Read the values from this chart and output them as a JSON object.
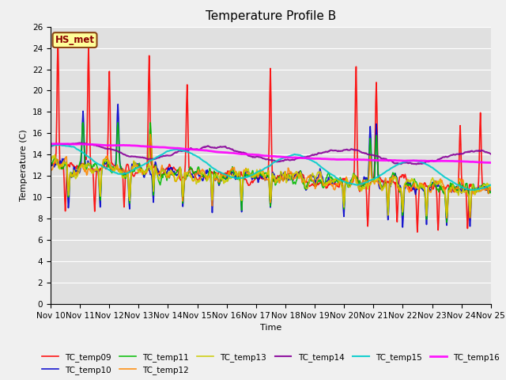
{
  "title": "Temperature Profile B",
  "xlabel": "Time",
  "ylabel": "Temperature (C)",
  "ylim": [
    0,
    26
  ],
  "x_tick_labels": [
    "Nov 10",
    "Nov 11",
    "Nov 12",
    "Nov 13",
    "Nov 14",
    "Nov 15",
    "Nov 16",
    "Nov 17",
    "Nov 18",
    "Nov 19",
    "Nov 20",
    "Nov 21",
    "Nov 22",
    "Nov 23",
    "Nov 24",
    "Nov 25"
  ],
  "hs_met_label": "HS_met",
  "bg_color": "#e0e0e0",
  "fig_bg_color": "#f0f0f0",
  "series": [
    {
      "name": "TC_temp09",
      "color": "#ff0000",
      "lw": 1.2,
      "ls": "-"
    },
    {
      "name": "TC_temp10",
      "color": "#0000cc",
      "lw": 1.2,
      "ls": "-"
    },
    {
      "name": "TC_temp11",
      "color": "#00bb00",
      "lw": 1.2,
      "ls": "-"
    },
    {
      "name": "TC_temp12",
      "color": "#ff8800",
      "lw": 1.2,
      "ls": "-"
    },
    {
      "name": "TC_temp13",
      "color": "#cccc00",
      "lw": 1.2,
      "ls": "-"
    },
    {
      "name": "TC_temp14",
      "color": "#880099",
      "lw": 1.5,
      "ls": "-"
    },
    {
      "name": "TC_temp15",
      "color": "#00cccc",
      "lw": 1.5,
      "ls": "-"
    },
    {
      "name": "TC_temp16",
      "color": "#ff00ff",
      "lw": 2.0,
      "ls": "-"
    }
  ],
  "title_fontsize": 11,
  "axis_label_fontsize": 8,
  "tick_fontsize": 7.5,
  "legend_fontsize": 7.5
}
